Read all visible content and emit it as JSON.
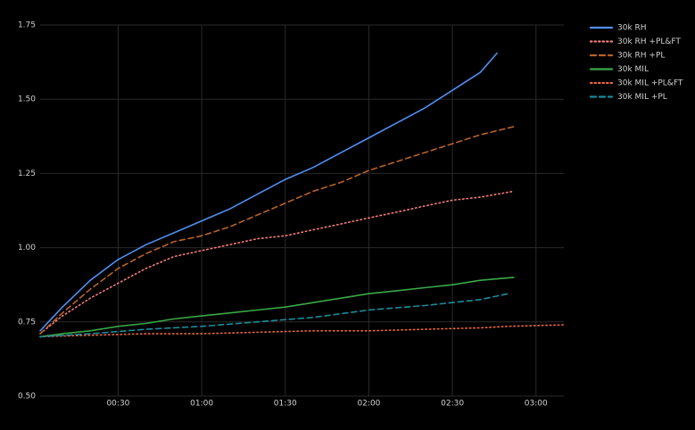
{
  "chart_data": {
    "type": "line",
    "xlim": [
      2,
      190
    ],
    "ylim": [
      0.5,
      1.75
    ],
    "xticks": [
      {
        "value": 30,
        "label": "00:30"
      },
      {
        "value": 60,
        "label": "01:00"
      },
      {
        "value": 90,
        "label": "01:30"
      },
      {
        "value": 120,
        "label": "02:00"
      },
      {
        "value": 150,
        "label": "02:30"
      },
      {
        "value": 180,
        "label": "03:00"
      }
    ],
    "yticks": [
      {
        "value": 0.5,
        "label": "0.50"
      },
      {
        "value": 0.75,
        "label": "0.75"
      },
      {
        "value": 1.0,
        "label": "1.00"
      },
      {
        "value": 1.25,
        "label": "1.25"
      },
      {
        "value": 1.5,
        "label": "1.50"
      },
      {
        "value": 1.75,
        "label": "1.75"
      }
    ],
    "grid": true,
    "legend": "top-right",
    "series": [
      {
        "name": "30k RH",
        "color": "#4f8ff0",
        "dash": "solid",
        "x": [
          2,
          10,
          20,
          30,
          40,
          50,
          60,
          70,
          80,
          90,
          100,
          110,
          120,
          130,
          140,
          150,
          160,
          166
        ],
        "values": [
          0.72,
          0.8,
          0.89,
          0.96,
          1.01,
          1.05,
          1.09,
          1.13,
          1.18,
          1.23,
          1.27,
          1.32,
          1.37,
          1.42,
          1.47,
          1.53,
          1.59,
          1.655
        ]
      },
      {
        "name": "30k RH +PL&FT",
        "color": "#f07b7b",
        "dash": "dotted",
        "x": [
          2,
          10,
          20,
          30,
          40,
          50,
          60,
          70,
          80,
          90,
          100,
          110,
          120,
          130,
          140,
          150,
          160,
          172
        ],
        "values": [
          0.71,
          0.77,
          0.83,
          0.88,
          0.93,
          0.97,
          0.99,
          1.01,
          1.03,
          1.04,
          1.06,
          1.08,
          1.1,
          1.12,
          1.14,
          1.16,
          1.17,
          1.19
        ]
      },
      {
        "name": "30k RH +PL",
        "color": "#b8622a",
        "dash": "dashed",
        "x": [
          2,
          10,
          20,
          30,
          40,
          50,
          60,
          70,
          80,
          90,
          100,
          110,
          120,
          130,
          140,
          150,
          160,
          173
        ],
        "values": [
          0.71,
          0.78,
          0.86,
          0.93,
          0.98,
          1.02,
          1.04,
          1.07,
          1.11,
          1.15,
          1.19,
          1.22,
          1.26,
          1.29,
          1.32,
          1.35,
          1.38,
          1.41
        ]
      },
      {
        "name": "30k MIL",
        "color": "#3aa847",
        "dash": "solid",
        "x": [
          2,
          10,
          20,
          30,
          40,
          50,
          60,
          70,
          80,
          90,
          100,
          110,
          120,
          130,
          140,
          150,
          160,
          172
        ],
        "values": [
          0.7,
          0.71,
          0.72,
          0.735,
          0.745,
          0.76,
          0.77,
          0.78,
          0.79,
          0.8,
          0.815,
          0.83,
          0.845,
          0.855,
          0.865,
          0.875,
          0.89,
          0.9
        ]
      },
      {
        "name": "30k MIL +PL&FT",
        "color": "#e8663c",
        "dash": "dotted",
        "x": [
          2,
          20,
          40,
          60,
          80,
          100,
          120,
          140,
          160,
          170,
          190
        ],
        "values": [
          0.7,
          0.705,
          0.71,
          0.71,
          0.715,
          0.72,
          0.72,
          0.725,
          0.73,
          0.735,
          0.74
        ]
      },
      {
        "name": "30k MIL +PL",
        "color": "#1b8c9c",
        "dash": "dashed",
        "x": [
          2,
          20,
          40,
          60,
          80,
          100,
          120,
          140,
          160,
          170
        ],
        "values": [
          0.7,
          0.71,
          0.725,
          0.735,
          0.75,
          0.765,
          0.79,
          0.805,
          0.825,
          0.845
        ]
      }
    ]
  }
}
